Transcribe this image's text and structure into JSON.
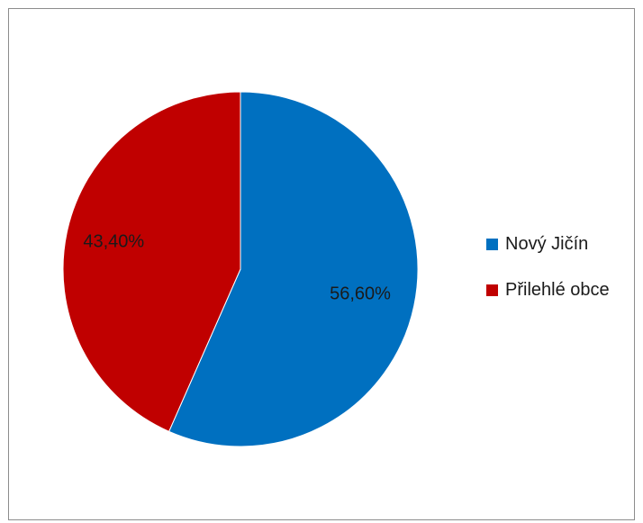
{
  "chart_data": {
    "type": "pie",
    "title": "",
    "categories": [
      "Nový Jičín",
      "Přilehlé obce"
    ],
    "values": [
      56.6,
      43.4
    ],
    "labels": [
      "56,60%",
      "43,40%"
    ],
    "colors": [
      "#0070c0",
      "#c00000"
    ],
    "legend": {
      "position": "right",
      "entries": [
        "Nový Jičín",
        "Přilehlé obce"
      ]
    }
  }
}
